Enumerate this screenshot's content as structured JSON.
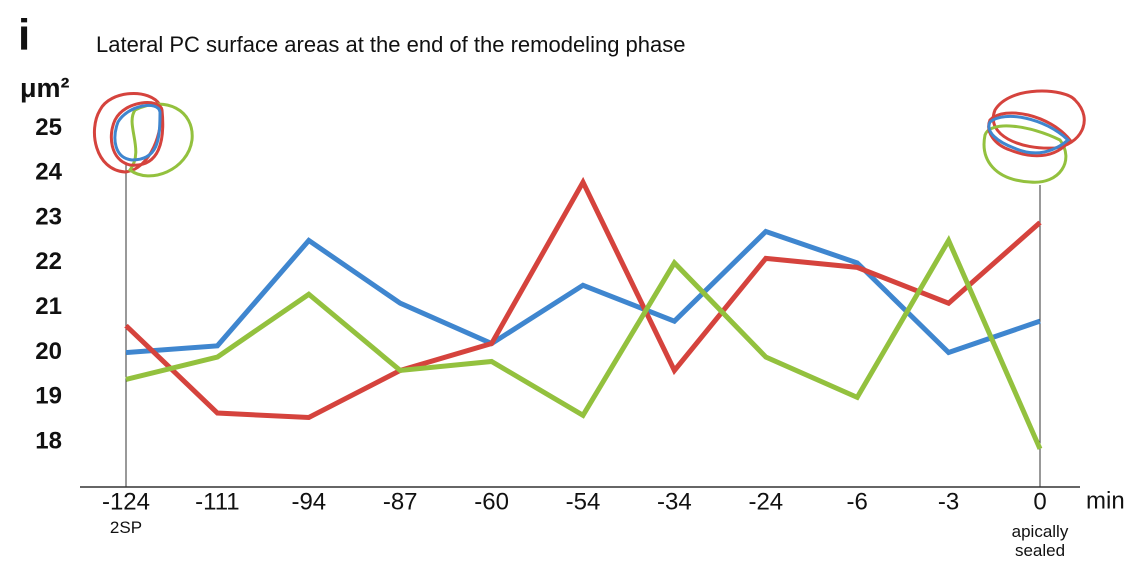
{
  "chart_data": {
    "type": "line",
    "panel_label": "i",
    "title": "Lateral PC surface areas at the end of the remodeling phase",
    "y_label": "μm²",
    "x_label": "min",
    "categories": [
      "-124",
      "-111",
      "-94",
      "-87",
      "-60",
      "-54",
      "-34",
      "-24",
      "-6",
      "-3",
      "0"
    ],
    "annotations": [
      "2SP",
      "apically sealed"
    ],
    "series": [
      {
        "color": "#3f86cf",
        "values": [
          20.0,
          20.15,
          22.5,
          21.1,
          20.2,
          21.5,
          20.7,
          22.7,
          22.0,
          20.0,
          20.7
        ]
      },
      {
        "color": "#d5433d",
        "values": [
          20.6,
          18.65,
          18.55,
          19.6,
          20.2,
          23.8,
          19.6,
          22.1,
          21.9,
          21.1,
          22.9
        ]
      },
      {
        "color": "#93c13e",
        "values": [
          19.4,
          19.9,
          21.3,
          19.6,
          19.8,
          18.6,
          22.0,
          19.9,
          19.0,
          22.5,
          17.85
        ]
      }
    ],
    "ylim": [
      17,
      25.5
    ],
    "yticks": [
      18,
      19,
      20,
      21,
      22,
      23,
      24,
      25
    ]
  }
}
